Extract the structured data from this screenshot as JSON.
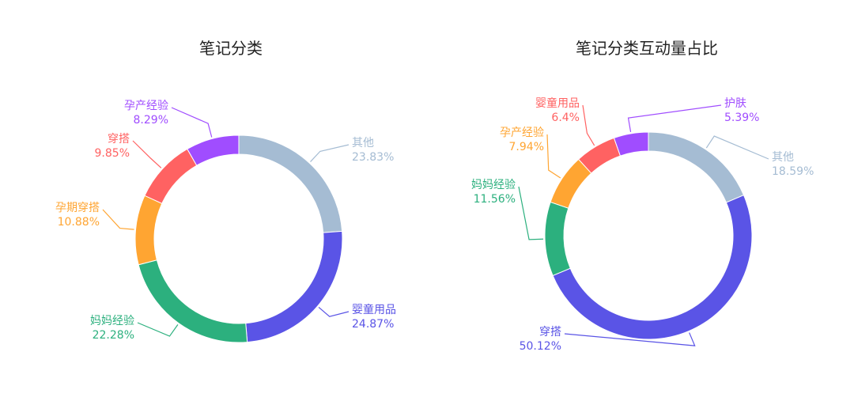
{
  "chart_data": [
    {
      "type": "pie",
      "style": "donut",
      "title": "笔记分类",
      "slices": [
        {
          "label": "其他",
          "value": 23.83,
          "value_text": "23.83%",
          "color": "#A5BCD3"
        },
        {
          "label": "婴童用品",
          "value": 24.87,
          "value_text": "24.87%",
          "color": "#5A54E6"
        },
        {
          "label": "妈妈经验",
          "value": 22.28,
          "value_text": "22.28%",
          "color": "#2CB07E"
        },
        {
          "label": "孕期穿搭",
          "value": 10.88,
          "value_text": "10.88%",
          "color": "#FFA532"
        },
        {
          "label": "穿搭",
          "value": 9.85,
          "value_text": "9.85%",
          "color": "#FF6262"
        },
        {
          "label": "孕产经验",
          "value": 8.29,
          "value_text": "8.29%",
          "color": "#A04DFF"
        }
      ]
    },
    {
      "type": "pie",
      "style": "donut",
      "title": "笔记分类互动量占比",
      "slices": [
        {
          "label": "其他",
          "value": 18.59,
          "value_text": "18.59%",
          "color": "#A5BCD3"
        },
        {
          "label": "穿搭",
          "value": 50.12,
          "value_text": "50.12%",
          "color": "#5A54E6"
        },
        {
          "label": "妈妈经验",
          "value": 11.56,
          "value_text": "11.56%",
          "color": "#2CB07E"
        },
        {
          "label": "孕产经验",
          "value": 7.94,
          "value_text": "7.94%",
          "color": "#FFA532"
        },
        {
          "label": "婴童用品",
          "value": 6.4,
          "value_text": "6.4%",
          "color": "#FF6262"
        },
        {
          "label": "护肤",
          "value": 5.39,
          "value_text": "5.39%",
          "color": "#A04DFF"
        }
      ]
    }
  ]
}
